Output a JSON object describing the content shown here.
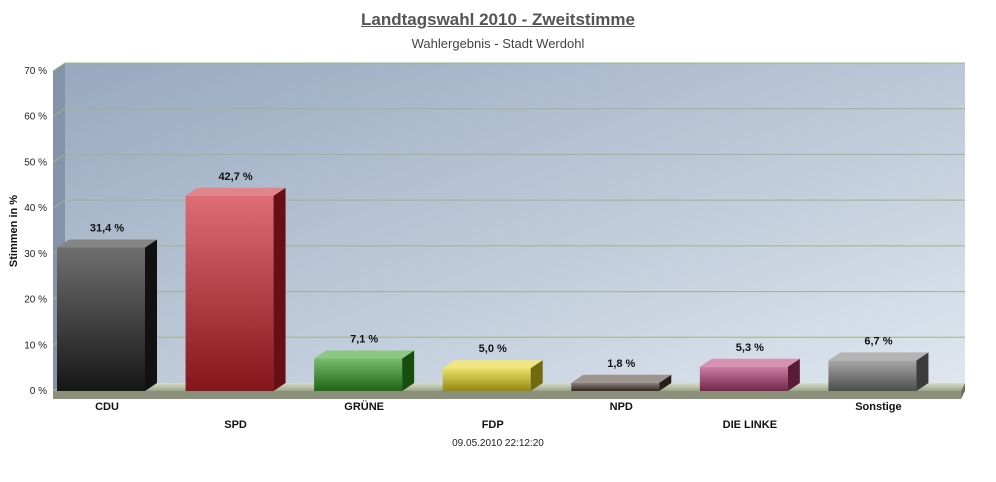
{
  "chart_data": {
    "type": "bar",
    "title": "Landtagswahl 2010 - Zweitstimme",
    "subtitle": "Wahlergebnis - Stadt Werdohl",
    "ylabel": "Stimmen in %",
    "xlabel": "",
    "ylim": [
      0,
      70
    ],
    "yticks": [
      {
        "value": 0,
        "label": "0 %"
      },
      {
        "value": 10,
        "label": "10 %"
      },
      {
        "value": 20,
        "label": "20 %"
      },
      {
        "value": 30,
        "label": "30 %"
      },
      {
        "value": 40,
        "label": "40 %"
      },
      {
        "value": 50,
        "label": "50 %"
      },
      {
        "value": 60,
        "label": "60 %"
      },
      {
        "value": 70,
        "label": "70 %"
      }
    ],
    "categories": [
      "CDU",
      "SPD",
      "GRÜNE",
      "FDP",
      "NPD",
      "DIE LINKE",
      "Sonstige"
    ],
    "values": [
      31.4,
      42.7,
      7.1,
      5.0,
      1.8,
      5.3,
      6.7
    ],
    "value_labels": [
      "31,4 %",
      "42,7 %",
      "7,1 %",
      "5,0 %",
      "1,8 %",
      "5,3 %",
      "6,7 %"
    ],
    "colors": [
      "#222222",
      "#cc1f2a",
      "#2e9a1e",
      "#e2d21a",
      "#4d3d33",
      "#b23a72",
      "#777777"
    ],
    "grid": true,
    "legend": "none",
    "footer": "09.05.2010 22:12:20"
  }
}
